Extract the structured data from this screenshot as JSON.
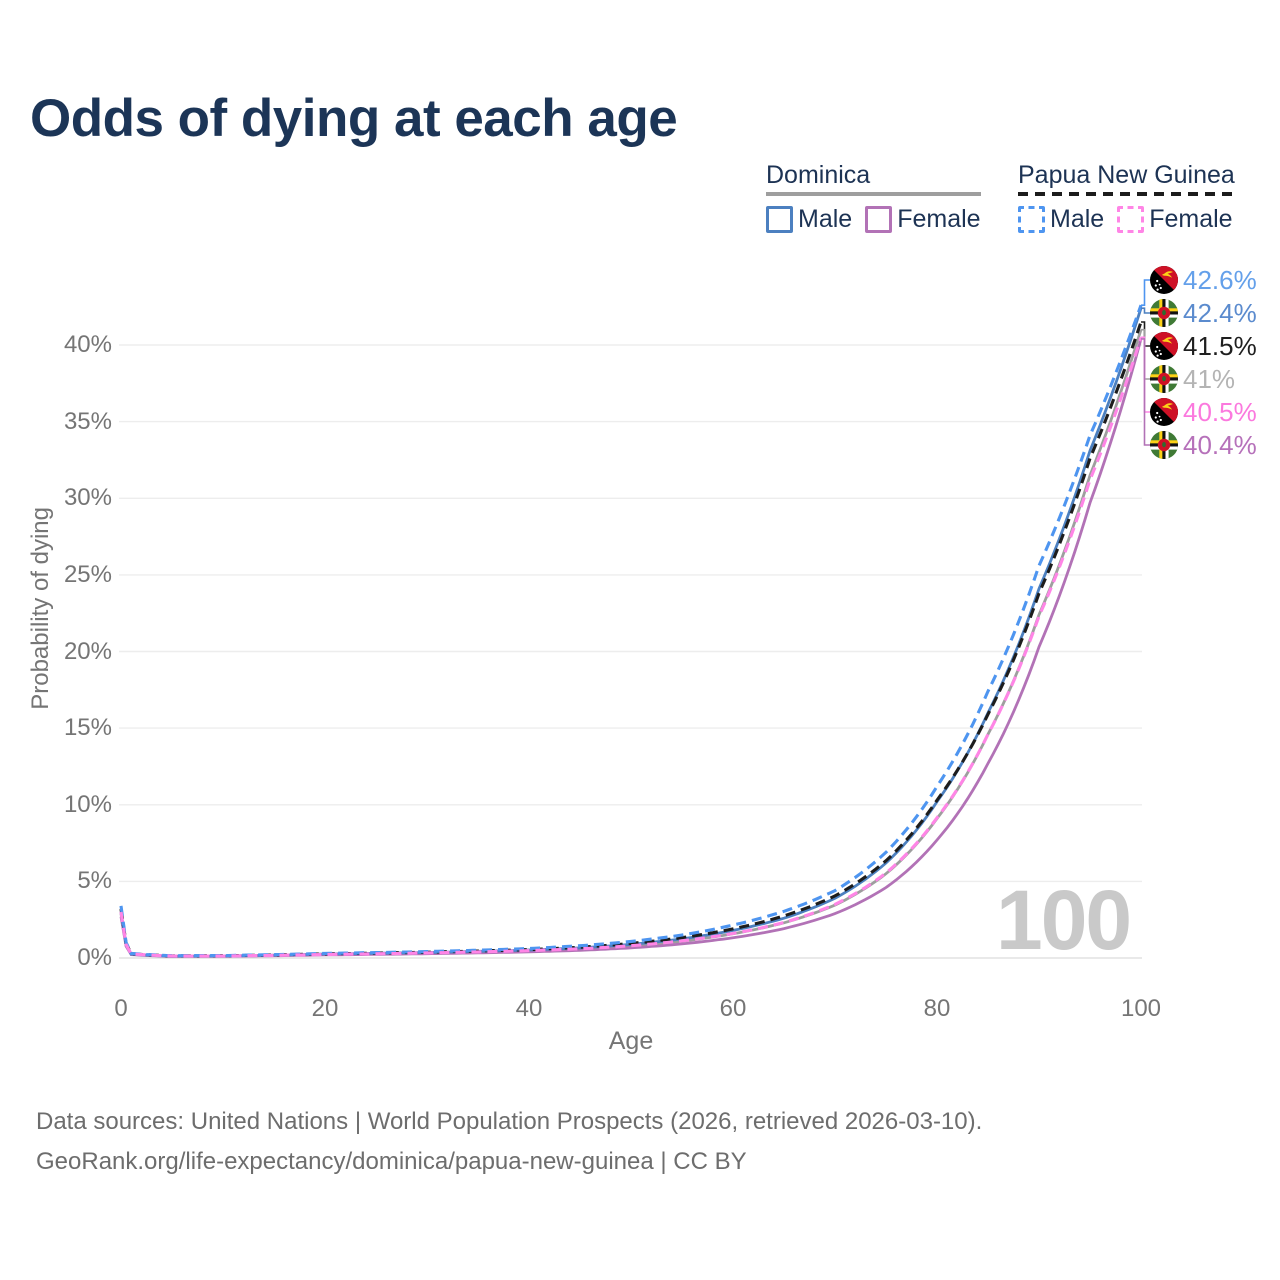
{
  "title": "Odds of dying at each age",
  "legend": {
    "groups": [
      {
        "id": "dominica",
        "label": "Dominica",
        "line_style": "solid",
        "underline_color": "#9e9e9e",
        "items": [
          {
            "label": "Male",
            "color": "#4c80c0"
          },
          {
            "label": "Female",
            "color": "#b272b6"
          }
        ]
      },
      {
        "id": "papua-new-guinea",
        "label": "Papua New Guinea",
        "line_style": "dashed",
        "underline_color": "#1c1c1c",
        "items": [
          {
            "label": "Male",
            "color": "#4e95f0"
          },
          {
            "label": "Female",
            "color": "#ff85e6"
          }
        ]
      }
    ]
  },
  "end_labels": [
    {
      "value": "42.6%",
      "flag": "papua-new-guinea",
      "color": "#64a0ea"
    },
    {
      "value": "42.4%",
      "flag": "dominica",
      "color": "#5b8bce"
    },
    {
      "value": "41.5%",
      "flag": "papua-new-guinea",
      "color": "#1f1f1f"
    },
    {
      "value": "41%",
      "flag": "dominica",
      "color": "#b4b4b4"
    },
    {
      "value": "40.5%",
      "flag": "papua-new-guinea",
      "color": "#fb79de"
    },
    {
      "value": "40.4%",
      "flag": "dominica",
      "color": "#b671ba"
    }
  ],
  "watermark": "100",
  "footer": {
    "line1": "Data sources: United Nations | World Population Prospects (2026, retrieved 2026-03-10).",
    "line2": "GeoRank.org/life-expectancy/dominica/papua-new-guinea | CC BY"
  },
  "chart_data": {
    "type": "line",
    "title": "Odds of dying at each age",
    "xlabel": "Age",
    "ylabel": "Probability of dying",
    "xlim": [
      0,
      100
    ],
    "ylim": [
      0,
      44
    ],
    "grid": true,
    "x_ticks": [
      0,
      20,
      40,
      60,
      80,
      100
    ],
    "y_ticks": [
      0,
      5,
      10,
      15,
      20,
      25,
      30,
      35,
      40
    ],
    "y_tick_suffix": "%",
    "x": [
      0,
      1,
      5,
      10,
      20,
      30,
      40,
      45,
      50,
      55,
      60,
      65,
      70,
      75,
      80,
      85,
      90,
      95,
      100
    ],
    "series": [
      {
        "name": "Papua New Guinea Male",
        "country": "papua-new-guinea",
        "dashed": true,
        "color": "#4e95f0",
        "end_label": "42.6%",
        "values": [
          3.4,
          0.3,
          0.15,
          0.16,
          0.3,
          0.42,
          0.62,
          0.8,
          1.08,
          1.5,
          2.15,
          3.05,
          4.4,
          6.9,
          11.2,
          17.4,
          25.6,
          34.1,
          42.6
        ]
      },
      {
        "name": "Dominica Male",
        "country": "dominica",
        "dashed": false,
        "color": "#4c80c0",
        "end_label": "42.4%",
        "values": [
          3.0,
          0.25,
          0.12,
          0.13,
          0.26,
          0.36,
          0.52,
          0.66,
          0.89,
          1.25,
          1.8,
          2.6,
          3.9,
          6.2,
          10.2,
          16.0,
          24.1,
          33.1,
          42.4
        ]
      },
      {
        "name": "Papua New Guinea",
        "country": "papua-new-guinea",
        "dashed": true,
        "color": "#1d1d1d",
        "end_label": "41.5%",
        "values": [
          3.2,
          0.28,
          0.14,
          0.15,
          0.27,
          0.38,
          0.55,
          0.7,
          0.95,
          1.33,
          1.9,
          2.75,
          4.05,
          6.35,
          10.3,
          15.9,
          23.8,
          32.6,
          41.5
        ]
      },
      {
        "name": "Dominica",
        "country": "dominica",
        "dashed": false,
        "color": "#9e9e9e",
        "end_label": "41%",
        "values": [
          2.9,
          0.24,
          0.11,
          0.12,
          0.23,
          0.32,
          0.47,
          0.59,
          0.79,
          1.1,
          1.58,
          2.3,
          3.45,
          5.5,
          9.1,
          14.6,
          22.4,
          31.5,
          41.0
        ]
      },
      {
        "name": "Papua New Guinea Female",
        "country": "papua-new-guinea",
        "dashed": true,
        "color": "#ff85e6",
        "end_label": "40.5%",
        "values": [
          3.0,
          0.26,
          0.13,
          0.13,
          0.23,
          0.33,
          0.48,
          0.6,
          0.8,
          1.12,
          1.6,
          2.32,
          3.5,
          5.55,
          9.15,
          14.6,
          22.3,
          31.2,
          40.5
        ]
      },
      {
        "name": "Dominica Female",
        "country": "dominica",
        "dashed": false,
        "color": "#b272b6",
        "end_label": "40.4%",
        "values": [
          2.7,
          0.22,
          0.1,
          0.11,
          0.2,
          0.28,
          0.4,
          0.5,
          0.66,
          0.92,
          1.32,
          1.92,
          2.9,
          4.6,
          7.7,
          12.7,
          20.3,
          29.7,
          40.4
        ]
      }
    ]
  }
}
